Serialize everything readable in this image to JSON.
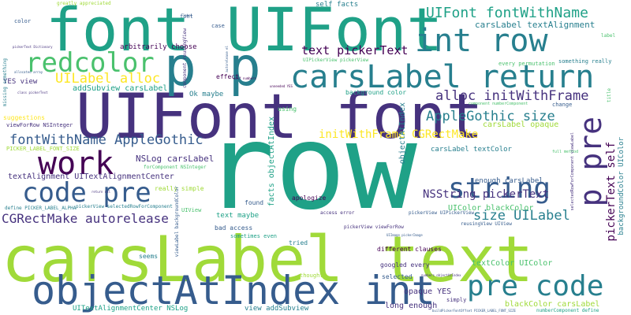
{
  "background": "#ffffff",
  "palette": [
    "#440154",
    "#46327e",
    "#365c8d",
    "#277f8e",
    "#1fa187",
    "#4ac16d",
    "#a0da39",
    "#fde725"
  ],
  "words": [
    {
      "text": "row",
      "weight": 100
    },
    {
      "text": "carsLabel text",
      "weight": 96
    },
    {
      "text": "UIFont font",
      "weight": 88
    },
    {
      "text": "font UIFont",
      "weight": 86
    },
    {
      "text": "p p",
      "weight": 84
    },
    {
      "text": "objectAtIndex int",
      "weight": 64
    },
    {
      "text": "carsLabel return",
      "weight": 55
    },
    {
      "text": "int row",
      "weight": 52
    },
    {
      "text": "redcolor",
      "weight": 48
    },
    {
      "text": "pre code",
      "weight": 47
    },
    {
      "text": "code pre",
      "weight": 46
    },
    {
      "text": "p pre",
      "weight": 44
    },
    {
      "text": "work",
      "weight": 43
    },
    {
      "text": "string",
      "weight": 40
    },
    {
      "text": "UIFont fontWithName",
      "weight": 27
    },
    {
      "text": "fontWithName AppleGothic",
      "weight": 26
    },
    {
      "text": "UILabel alloc",
      "weight": 25
    },
    {
      "text": "AppleGothic size",
      "weight": 25
    },
    {
      "text": "alloc initWithFrame",
      "weight": 24
    },
    {
      "text": "size UILabel",
      "weight": 24
    },
    {
      "text": "text pickerText",
      "weight": 23
    },
    {
      "text": "CGRectMake autorelease",
      "weight": 22
    },
    {
      "text": "NSString pickerText",
      "weight": 21
    },
    {
      "text": "pickerText self",
      "weight": 21
    },
    {
      "text": "initWithFrame CGRectMake",
      "weight": 20
    },
    {
      "text": "carsLabel textAlignment",
      "weight": 15
    },
    {
      "text": "NSLog carsLabel",
      "weight": 14
    },
    {
      "text": "textAlignment UITextAlignmentCenter",
      "weight": 13
    },
    {
      "text": "addSubview carsLabel",
      "weight": 12
    },
    {
      "text": "UIColor blackColor",
      "weight": 11
    },
    {
      "text": "objectAtIndex",
      "weight": 11
    },
    {
      "text": "carsLabel opaque",
      "weight": 11
    },
    {
      "text": "facts objectAtIndex",
      "weight": 11
    },
    {
      "text": "background color",
      "weight": 8
    },
    {
      "text": "blackColor carsLabel",
      "weight": 11
    },
    {
      "text": "long enough",
      "weight": 11
    },
    {
      "text": "opaque YES",
      "weight": 11
    },
    {
      "text": "textColor UIColor",
      "weight": 11
    },
    {
      "text": "UITextAlignmentCenter NSLog",
      "weight": 10
    },
    {
      "text": "view addSubview",
      "weight": 10
    },
    {
      "text": "carsLabel textColor",
      "weight": 10
    },
    {
      "text": "enough carsLabel",
      "weight": 9
    },
    {
      "text": "self facts",
      "weight": 10
    },
    {
      "text": "arbitrarily choose",
      "weight": 9
    },
    {
      "text": "Ok maybe",
      "weight": 9
    },
    {
      "text": "text maybe",
      "weight": 9
    },
    {
      "text": "YES view",
      "weight": 9
    },
    {
      "text": "suggestions",
      "weight": 8
    },
    {
      "text": "bad access",
      "weight": 8
    },
    {
      "text": "googled every",
      "weight": 8
    },
    {
      "text": "different clauses",
      "weight": 8
    },
    {
      "text": "selected",
      "weight": 8
    },
    {
      "text": "sometimes even",
      "weight": 7
    },
    {
      "text": "tried",
      "weight": 8
    },
    {
      "text": "really simple",
      "weight": 8
    },
    {
      "text": "apologize",
      "weight": 8
    },
    {
      "text": "every permutation",
      "weight": 7
    },
    {
      "text": "something really",
      "weight": 7
    },
    {
      "text": "effect",
      "weight": 8
    },
    {
      "text": "found",
      "weight": 8
    },
    {
      "text": "using",
      "weight": 8
    },
    {
      "text": "seems",
      "weight": 8
    },
    {
      "text": "simply",
      "weight": 7
    },
    {
      "text": "thought",
      "weight": 7
    },
    {
      "text": "change",
      "weight": 7
    },
    {
      "text": "case",
      "weight": 7
    },
    {
      "text": "font",
      "weight": 7
    },
    {
      "text": "color",
      "weight": 7
    },
    {
      "text": "label",
      "weight": 6
    },
    {
      "text": "title",
      "weight": 6
    },
    {
      "text": "UIView",
      "weight": 7
    },
    {
      "text": "PICKER_LABEL_FONT_SIZE",
      "weight": 7
    },
    {
      "text": "viewForRow NSInteger",
      "weight": 7
    },
    {
      "text": "forComponent NSInteger",
      "weight": 6
    },
    {
      "text": "define PICKER_LABEL_ALPHA",
      "weight": 6
    },
    {
      "text": "pickerView selectedRowForComponent",
      "weight": 6
    },
    {
      "text": "pickerView UIPickerView",
      "weight": 6
    },
    {
      "text": "pickerView viewForRow",
      "weight": 6
    },
    {
      "text": "UIPickerView pickerView",
      "weight": 6
    },
    {
      "text": "reusingView UIView",
      "weight": 6
    },
    {
      "text": "component reusingView",
      "weight": 6
    },
    {
      "text": "component numberComponent",
      "weight": 5
    },
    {
      "text": "numberComponent define",
      "weight": 6
    },
    {
      "text": "access error",
      "weight": 6
    },
    {
      "text": "greatly appreciated",
      "weight": 6
    },
    {
      "text": "full method",
      "weight": 5
    },
    {
      "text": "missing something",
      "weight": 6
    },
    {
      "text": "backgroundColor UIColor",
      "weight": 9
    },
    {
      "text": "viewLabel backgroundColor",
      "weight": 6
    },
    {
      "text": "selectedRowForComponent viewLabel",
      "weight": 5
    },
    {
      "text": "pickerText Dictionary",
      "weight": 4
    },
    {
      "text": "class pickerText",
      "weight": 4
    },
    {
      "text": "allocated array",
      "weight": 4
    },
    {
      "text": "self numbers",
      "weight": 4
    },
    {
      "text": "unneeded YES",
      "weight": 4
    },
    {
      "text": "autorelease el",
      "weight": 4
    },
    {
      "text": "label",
      "weight": 4
    },
    {
      "text": "return nil",
      "weight": 4
    },
    {
      "text": "UIImage pickerImage",
      "weight": 4
    },
    {
      "text": "numbers objectAtIndex",
      "weight": 4
    },
    {
      "text": "buildPickerFontOffset PICKER_LABEL_FONT_SIZE",
      "weight": 4
    }
  ]
}
